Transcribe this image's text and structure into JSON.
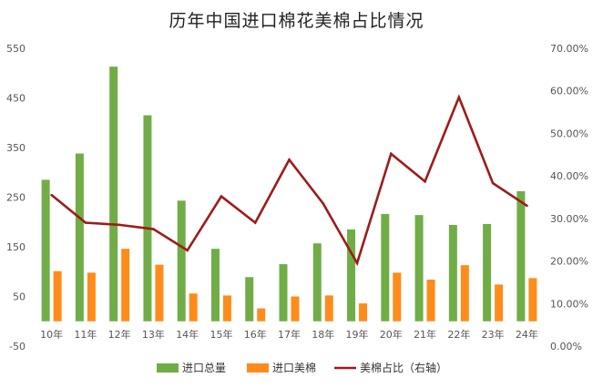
{
  "chart_data": {
    "type": "bar",
    "title": "历年中国进口棉花美棉占比情况",
    "categories": [
      "10年",
      "11年",
      "12年",
      "13年",
      "14年",
      "15年",
      "16年",
      "17年",
      "18年",
      "19年",
      "20年",
      "21年",
      "22年",
      "23年",
      "24年"
    ],
    "series": [
      {
        "name": "进口总量",
        "type": "bar",
        "axis": "left",
        "color": "#70ad47",
        "values": [
          285,
          338,
          513,
          415,
          243,
          146,
          89,
          115,
          157,
          185,
          216,
          214,
          194,
          196,
          262
        ]
      },
      {
        "name": "进口美棉",
        "type": "bar",
        "axis": "left",
        "color": "#ff8c1a",
        "values": [
          101,
          98,
          146,
          114,
          56,
          52,
          26,
          50,
          52,
          36,
          98,
          84,
          113,
          74,
          87
        ]
      },
      {
        "name": "美棉占比（右轴）",
        "type": "line",
        "axis": "right",
        "color": "#9e1b1b",
        "values": [
          35.5,
          29.0,
          28.5,
          27.5,
          22.5,
          35.2,
          29.0,
          43.8,
          33.5,
          19.5,
          45.2,
          38.7,
          58.5,
          38.3,
          33.0
        ]
      }
    ],
    "ylim_left": [
      -50,
      550
    ],
    "yticks_left": [
      "-50",
      "50",
      "150",
      "250",
      "350",
      "450",
      "550"
    ],
    "ylim_right": [
      0,
      70
    ],
    "yticks_right": [
      "0.00%",
      "10.00%",
      "20.00%",
      "30.00%",
      "40.00%",
      "50.00%",
      "60.00%",
      "70.00%"
    ],
    "grid": false,
    "legend_position": "bottom"
  }
}
